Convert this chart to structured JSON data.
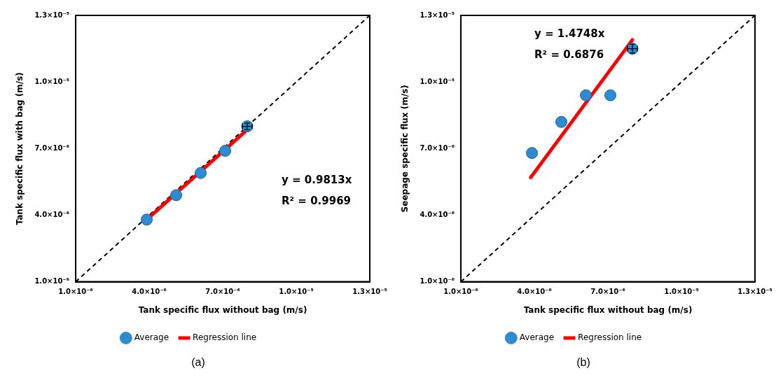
{
  "chart_data": [
    {
      "type": "scatter",
      "xlabel": "Tank specific flux without bag (m/s)",
      "ylabel": "Tank specific flux with bag (m/s)",
      "xlim": [
        1e-06,
        1.3e-05
      ],
      "ylim": [
        1e-06,
        1.3e-05
      ],
      "xticks": [
        {
          "value": 1e-06,
          "label": "1.0×10⁻⁶"
        },
        {
          "value": 4e-06,
          "label": "4.0×10⁻⁶"
        },
        {
          "value": 7e-06,
          "label": "7.0×10⁻⁶"
        },
        {
          "value": 1e-05,
          "label": "1.0×10⁻⁵"
        },
        {
          "value": 1.3e-05,
          "label": "1.3×10⁻⁵"
        }
      ],
      "yticks": [
        {
          "value": 1e-06,
          "label": "1.0×10⁻⁶"
        },
        {
          "value": 4e-06,
          "label": "4.0×10⁻⁶"
        },
        {
          "value": 7e-06,
          "label": "7.0×10⁻⁶"
        },
        {
          "value": 1e-05,
          "label": "1.0×10⁻⁵"
        },
        {
          "value": 1.3e-05,
          "label": "1.3×10⁻⁵"
        }
      ],
      "grid": false,
      "legend": "bottom",
      "series": [
        {
          "name": "Average",
          "type": "scatter",
          "color": "#2e8bd0",
          "marker": "circle",
          "x": [
            3.9e-06,
            5.1e-06,
            6.1e-06,
            7.1e-06,
            8e-06
          ],
          "values": [
            3.8e-06,
            4.9e-06,
            5.9e-06,
            6.9e-06,
            8e-06
          ],
          "errors": [
            null,
            null,
            null,
            null,
            1.5e-07
          ],
          "xerrors": [
            null,
            null,
            null,
            null,
            2e-07
          ]
        },
        {
          "name": "Regression line",
          "type": "line",
          "color": "#ff0000",
          "marker": "none",
          "line_style": "solid",
          "x": [
            3.9e-06,
            8e-06
          ],
          "values": [
            3.8e-06,
            7.85e-06
          ]
        },
        {
          "type": "line",
          "color": "#000000",
          "marker": "none",
          "line_style": "dashed",
          "x": [
            1e-06,
            1.3e-05
          ],
          "values": [
            1e-06,
            1.3e-05
          ]
        }
      ],
      "annotations": [
        "y = 0.9813x",
        "R² = 0.9969",
        "(a)"
      ]
    },
    {
      "type": "scatter",
      "xlabel": "Tank specific flux without bag (m/s)",
      "ylabel": "Seepage specific flux (m/s)",
      "xlim": [
        1e-06,
        1.3e-05
      ],
      "ylim": [
        1e-06,
        1.3e-05
      ],
      "xticks": [
        {
          "value": 1e-06,
          "label": "1.0×10⁻⁶"
        },
        {
          "value": 4e-06,
          "label": "4.0×10⁻⁶"
        },
        {
          "value": 7e-06,
          "label": "7.0×10⁻⁶"
        },
        {
          "value": 1e-05,
          "label": "1.0×10⁻⁵"
        },
        {
          "value": 1.3e-05,
          "label": "1.3×10⁻⁵"
        }
      ],
      "yticks": [
        {
          "value": 1e-06,
          "label": "1.0×10⁻⁶"
        },
        {
          "value": 4e-06,
          "label": "4.0×10⁻⁶"
        },
        {
          "value": 7e-06,
          "label": "7.0×10⁻⁶"
        },
        {
          "value": 1e-05,
          "label": "1.0×10⁻⁵"
        },
        {
          "value": 1.3e-05,
          "label": "1.3×10⁻⁵"
        }
      ],
      "grid": false,
      "legend": "bottom",
      "series": [
        {
          "name": "Average",
          "type": "scatter",
          "color": "#2e8bd0",
          "marker": "circle",
          "x": [
            3.9e-06,
            5.1e-06,
            6.1e-06,
            7.1e-06,
            8e-06
          ],
          "values": [
            6.8e-06,
            8.2e-06,
            9.4e-06,
            9.4e-06,
            1.15e-05
          ],
          "errors": [
            null,
            null,
            null,
            null,
            2e-07
          ],
          "xerrors": [
            null,
            null,
            null,
            null,
            2e-07
          ]
        },
        {
          "name": "Regression line",
          "type": "line",
          "color": "#ff0000",
          "marker": "none",
          "line_style": "solid",
          "x": [
            3.85e-06,
            8e-06
          ],
          "values": [
            5.7e-06,
            1.19e-05
          ]
        },
        {
          "type": "line",
          "color": "#000000",
          "marker": "none",
          "line_style": "dashed",
          "x": [
            1e-06,
            1.3e-05
          ],
          "values": [
            1e-06,
            1.3e-05
          ]
        }
      ],
      "annotations": [
        "y = 1.4748x",
        "R² = 0.6876",
        "(b)"
      ]
    }
  ]
}
